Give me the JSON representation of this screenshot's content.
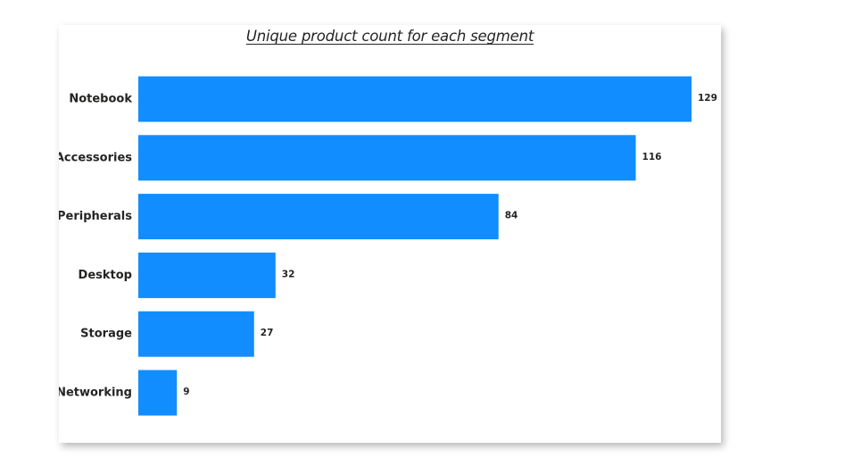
{
  "chart_data": {
    "type": "bar",
    "orientation": "horizontal",
    "title": "Unique product count for each segment",
    "categories": [
      "Notebook",
      "Accessories",
      "Peripherals",
      "Desktop",
      "Storage",
      "Networking"
    ],
    "values": [
      129,
      116,
      84,
      32,
      27,
      9
    ],
    "xlim": [
      0,
      129
    ],
    "grid": false,
    "legend": "none",
    "data_labels": true,
    "bar_color": "#118DFF"
  }
}
